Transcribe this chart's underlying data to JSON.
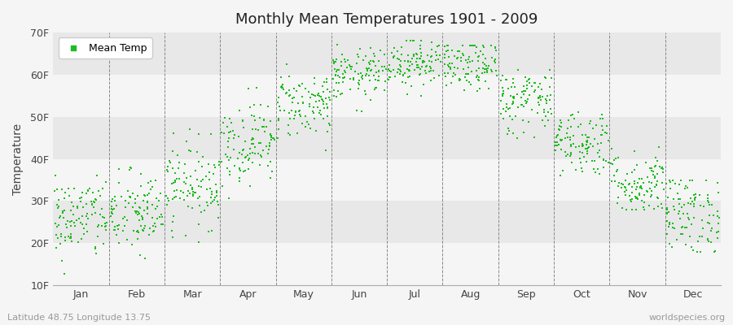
{
  "title": "Monthly Mean Temperatures 1901 - 2009",
  "ylabel": "Temperature",
  "ylim": [
    10,
    70
  ],
  "yticks": [
    10,
    20,
    30,
    40,
    50,
    60,
    70
  ],
  "ytick_labels": [
    "10F",
    "20F",
    "30F",
    "40F",
    "50F",
    "60F",
    "70F"
  ],
  "months": [
    "Jan",
    "Feb",
    "Mar",
    "Apr",
    "May",
    "Jun",
    "Jul",
    "Aug",
    "Sep",
    "Oct",
    "Nov",
    "Dec"
  ],
  "dot_color": "#22bb22",
  "bg_color": "#f5f5f5",
  "band_light": "#f5f5f5",
  "band_dark": "#e8e8e8",
  "legend_label": "Mean Temp",
  "bottom_left": "Latitude 48.75 Longitude 13.75",
  "bottom_right": "worldspecies.org",
  "n_years": 109,
  "monthly_means_F": [
    26,
    27,
    34,
    44,
    53,
    60,
    63,
    62,
    54,
    44,
    34,
    27
  ],
  "monthly_stds_F": [
    5,
    5,
    5,
    5,
    4,
    3,
    3,
    3,
    4,
    4,
    4,
    5
  ],
  "monthly_mins_F": [
    11,
    13,
    15,
    30,
    42,
    50,
    55,
    54,
    43,
    36,
    28,
    18
  ],
  "monthly_maxs_F": [
    36,
    38,
    47,
    57,
    63,
    68,
    68,
    67,
    63,
    53,
    43,
    35
  ]
}
